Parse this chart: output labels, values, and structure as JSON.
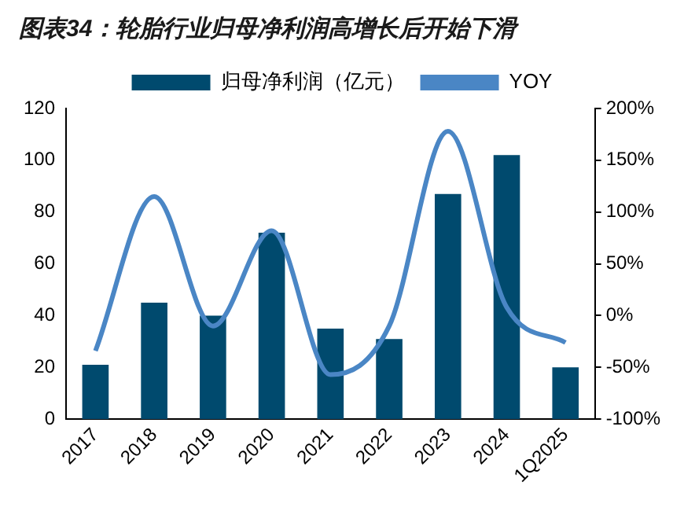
{
  "chart_data": {
    "type": "bar",
    "title": "图表34：轮胎行业归母净利润高增长后开始下滑",
    "categories": [
      "2017",
      "2018",
      "2019",
      "2020",
      "2021",
      "2022",
      "2023",
      "2024",
      "1Q2025"
    ],
    "series": [
      {
        "name": "归母净利润（亿元）",
        "color": "#004a6e",
        "values": [
          21,
          45,
          40,
          72,
          35,
          31,
          87,
          102,
          20
        ]
      },
      {
        "name": "YOY",
        "type": "line",
        "axis": "y2",
        "color": "#4a86c5",
        "values": [
          -34,
          115,
          -10,
          82,
          -57,
          -10,
          178,
          8,
          -26
        ]
      }
    ],
    "ylim": [
      0,
      120
    ],
    "yticks": [
      0,
      20,
      40,
      60,
      80,
      100,
      120
    ],
    "y2lim": [
      -100,
      200
    ],
    "y2ticks": [
      {
        "value": -100,
        "label": "-100%"
      },
      {
        "value": -50,
        "label": "-50%"
      },
      {
        "value": 0,
        "label": "0%"
      },
      {
        "value": 50,
        "label": "50%"
      },
      {
        "value": 100,
        "label": "100%"
      },
      {
        "value": 150,
        "label": "150%"
      },
      {
        "value": 200,
        "label": "200%"
      }
    ],
    "legend": "top",
    "grid": false,
    "marker": "none"
  }
}
